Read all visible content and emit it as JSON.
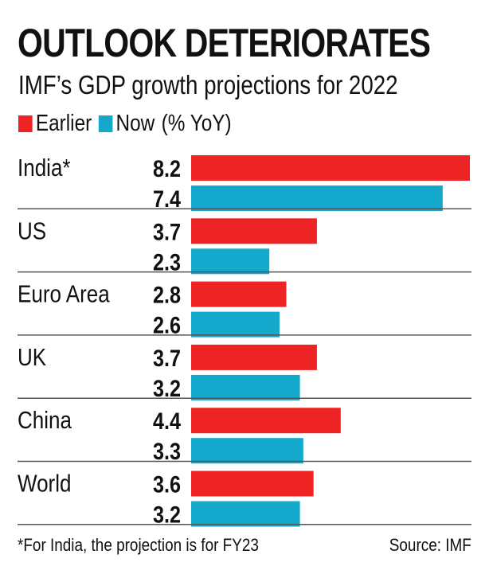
{
  "colors": {
    "earlier": "#ee2424",
    "now": "#14a8cc",
    "divider": "#555555"
  },
  "chart_data": {
    "type": "bar",
    "orientation": "horizontal",
    "title": "OUTLOOK DETERIORATES",
    "subtitle": "IMF’s GDP growth projections for 2022",
    "unit_note": "(% YoY)",
    "legend": [
      {
        "name": "Earlier",
        "color": "#ee2424"
      },
      {
        "name": "Now",
        "color": "#14a8cc"
      }
    ],
    "legend_position": "top-left",
    "categories": [
      "India*",
      "US",
      "Euro Area",
      "UK",
      "China",
      "World"
    ],
    "series": [
      {
        "name": "Earlier",
        "values": [
          8.2,
          3.7,
          2.8,
          3.7,
          4.4,
          3.6
        ]
      },
      {
        "name": "Now",
        "values": [
          7.4,
          2.3,
          2.6,
          3.2,
          3.3,
          3.2
        ]
      }
    ],
    "value_labels": [
      [
        "8.2",
        "7.4"
      ],
      [
        "3.7",
        "2.3"
      ],
      [
        "2.8",
        "2.6"
      ],
      [
        "3.7",
        "3.2"
      ],
      [
        "4.4",
        "3.3"
      ],
      [
        "3.6",
        "3.2"
      ]
    ],
    "xlim": [
      0,
      8.2
    ],
    "grid": false,
    "footnote": "*For India, the projection is for FY23",
    "source": "Source: IMF"
  }
}
